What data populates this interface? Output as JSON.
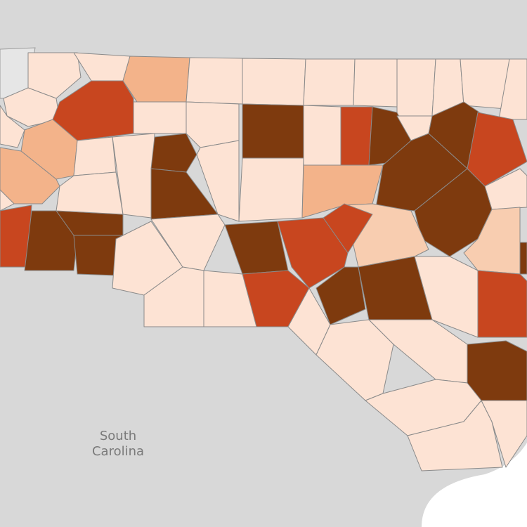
{
  "map": {
    "labels": [
      "South Carolina"
    ]
  }
}
